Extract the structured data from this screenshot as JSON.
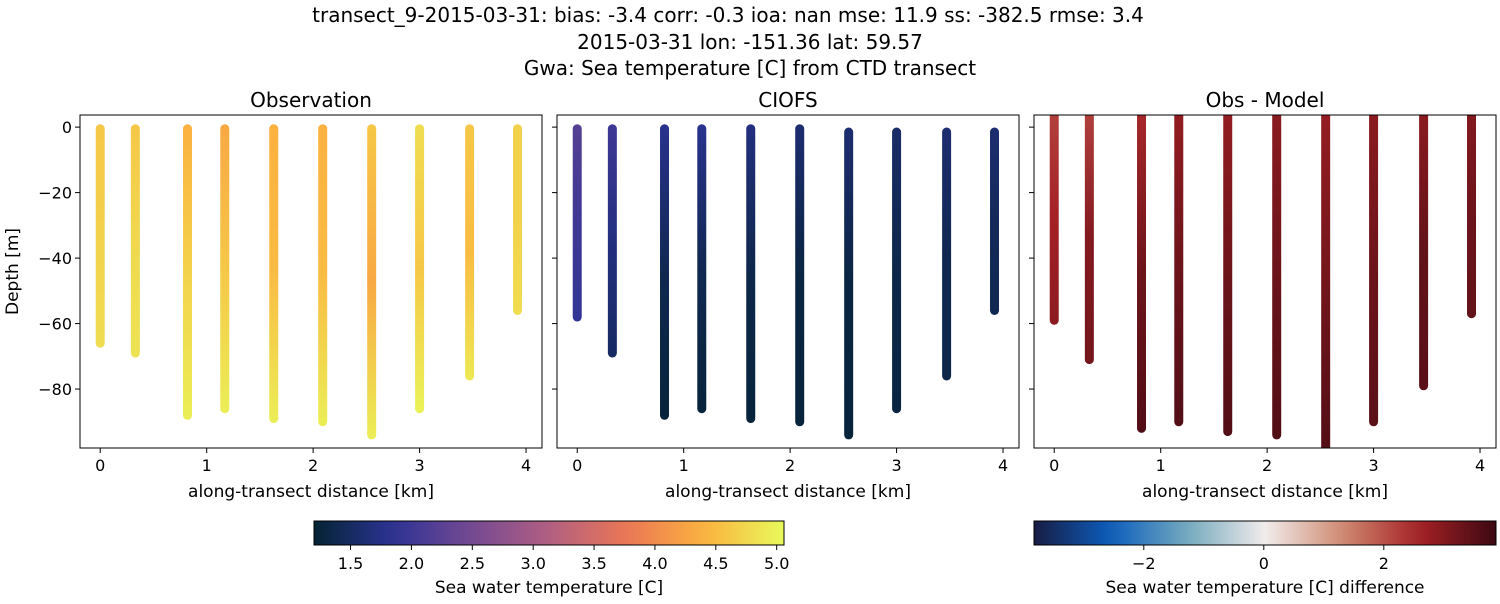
{
  "title_lines": [
    "transect_9-2015-03-31: bias: -3.4  corr: -0.3  ioa: nan  mse: 11.9  ss: -382.5  rmse: 3.4",
    "2015-03-31 lon: -151.36 lat: 59.57",
    "Gwa: Sea temperature [C] from CTD transect"
  ],
  "chart_data": [
    {
      "type": "scatter",
      "title": "Observation",
      "xlabel": "along-transect distance [km]",
      "ylabel": "Depth [m]",
      "xlim": [
        -0.19,
        4.15
      ],
      "ylim": [
        -98,
        3.7
      ],
      "xticks": [
        0,
        1,
        2,
        3,
        4
      ],
      "yticks": [
        0,
        -20,
        -40,
        -60,
        -80
      ],
      "colormap": "thermal",
      "casts": [
        {
          "x": 0,
          "top": -0.5,
          "bottom": -66,
          "values": [
            4.6,
            4.7,
            4.8
          ]
        },
        {
          "x": 0.33,
          "top": -0.5,
          "bottom": -69,
          "values": [
            4.6,
            4.75,
            4.85
          ]
        },
        {
          "x": 0.82,
          "top": -0.5,
          "bottom": -88,
          "values": [
            4.4,
            4.7,
            4.95
          ]
        },
        {
          "x": 1.17,
          "top": -0.5,
          "bottom": -86,
          "values": [
            4.3,
            4.6,
            4.95
          ]
        },
        {
          "x": 1.63,
          "top": -0.5,
          "bottom": -89,
          "values": [
            4.4,
            4.5,
            4.95
          ]
        },
        {
          "x": 2.09,
          "top": -0.5,
          "bottom": -90,
          "values": [
            4.4,
            4.5,
            4.95
          ]
        },
        {
          "x": 2.55,
          "top": -0.5,
          "bottom": -94,
          "values": [
            4.6,
            4.3,
            4.95
          ]
        },
        {
          "x": 3.0,
          "top": -0.5,
          "bottom": -86,
          "values": [
            4.8,
            4.6,
            5.0
          ]
        },
        {
          "x": 3.47,
          "top": -0.5,
          "bottom": -76,
          "values": [
            4.6,
            4.5,
            4.9
          ]
        },
        {
          "x": 3.92,
          "top": -0.5,
          "bottom": -56,
          "values": [
            4.7,
            4.7,
            4.8
          ]
        }
      ]
    },
    {
      "type": "scatter",
      "title": "CIOFS",
      "xlabel": "along-transect distance [km]",
      "xlim": [
        -0.19,
        4.15
      ],
      "ylim": [
        -98,
        3.7
      ],
      "xticks": [
        0,
        1,
        2,
        3,
        4
      ],
      "yticks": [
        0,
        -20,
        -40,
        -60,
        -80
      ],
      "colormap": "thermal",
      "casts": [
        {
          "x": 0,
          "top": -0.5,
          "bottom": -58,
          "values": [
            2.2,
            2.0,
            1.9
          ]
        },
        {
          "x": 0.33,
          "top": -0.5,
          "bottom": -69,
          "values": [
            2.0,
            1.7,
            1.5
          ]
        },
        {
          "x": 0.82,
          "top": -0.5,
          "bottom": -88,
          "values": [
            1.8,
            1.4,
            1.25
          ]
        },
        {
          "x": 1.17,
          "top": -0.5,
          "bottom": -86,
          "values": [
            1.8,
            1.4,
            1.25
          ]
        },
        {
          "x": 1.63,
          "top": -0.5,
          "bottom": -89,
          "values": [
            1.7,
            1.35,
            1.25
          ]
        },
        {
          "x": 2.09,
          "top": -0.5,
          "bottom": -90,
          "values": [
            1.6,
            1.3,
            1.25
          ]
        },
        {
          "x": 2.55,
          "top": -1.5,
          "bottom": -94,
          "values": [
            1.6,
            1.3,
            1.25
          ]
        },
        {
          "x": 3.0,
          "top": -1.5,
          "bottom": -86,
          "values": [
            1.55,
            1.35,
            1.3
          ]
        },
        {
          "x": 3.47,
          "top": -1.5,
          "bottom": -76,
          "values": [
            1.6,
            1.4,
            1.35
          ]
        },
        {
          "x": 3.92,
          "top": -1.5,
          "bottom": -56,
          "values": [
            1.6,
            1.45,
            1.4
          ]
        }
      ]
    },
    {
      "type": "scatter",
      "title": "Obs - Model",
      "xlabel": "along-transect distance [km]",
      "xlim": [
        -0.19,
        4.15
      ],
      "ylim": [
        -98,
        3.7
      ],
      "xticks": [
        0,
        1,
        2,
        3,
        4
      ],
      "yticks": [
        0,
        -20,
        -40,
        -60,
        -80
      ],
      "colormap": "balance",
      "casts": [
        {
          "x": 0,
          "top": 3.7,
          "bottom": -59,
          "values": [
            2.2,
            2.6,
            2.9
          ]
        },
        {
          "x": 0.33,
          "top": 3.7,
          "bottom": -71,
          "values": [
            2.2,
            3.0,
            3.2
          ]
        },
        {
          "x": 0.82,
          "top": 3.7,
          "bottom": -92,
          "values": [
            2.5,
            3.3,
            3.6
          ]
        },
        {
          "x": 1.17,
          "top": 3.7,
          "bottom": -90,
          "values": [
            2.8,
            3.3,
            3.6
          ]
        },
        {
          "x": 1.63,
          "top": 3.7,
          "bottom": -93,
          "values": [
            2.8,
            3.3,
            3.6
          ]
        },
        {
          "x": 2.09,
          "top": 3.7,
          "bottom": -94,
          "values": [
            2.9,
            3.3,
            3.6
          ]
        },
        {
          "x": 2.55,
          "top": 3.7,
          "bottom": -98,
          "values": [
            2.8,
            3.2,
            3.6
          ]
        },
        {
          "x": 3.0,
          "top": 3.7,
          "bottom": -90,
          "values": [
            2.9,
            3.3,
            3.5
          ]
        },
        {
          "x": 3.47,
          "top": 3.7,
          "bottom": -79,
          "values": [
            2.9,
            3.4,
            3.5
          ]
        },
        {
          "x": 3.92,
          "top": 3.7,
          "bottom": -57,
          "values": [
            3.0,
            3.3,
            3.4
          ]
        }
      ]
    }
  ],
  "colorbars": [
    {
      "label": "Sea water temperature [C]",
      "range": [
        1.2,
        5.06
      ],
      "ticks": [
        "1.5",
        "2.0",
        "2.5",
        "3.0",
        "3.5",
        "4.0",
        "4.5",
        "5.0"
      ],
      "colormap": "thermal"
    },
    {
      "label": "Sea water temperature [C] difference",
      "range": [
        -3.83,
        3.87
      ],
      "ticks": [
        "−2",
        "0",
        "2"
      ],
      "tick_values": [
        -2,
        0,
        2
      ],
      "colormap": "balance"
    }
  ],
  "colormaps": {
    "thermal": [
      "#042333",
      "#2c3395",
      "#744992",
      "#b15f82",
      "#eb7655",
      "#fbb33f",
      "#e8fa5b"
    ],
    "balance": [
      "#181c43",
      "#0c5ebe",
      "#75aabe",
      "#f1eceb",
      "#d08b73",
      "#a52125",
      "#3c0912"
    ]
  }
}
